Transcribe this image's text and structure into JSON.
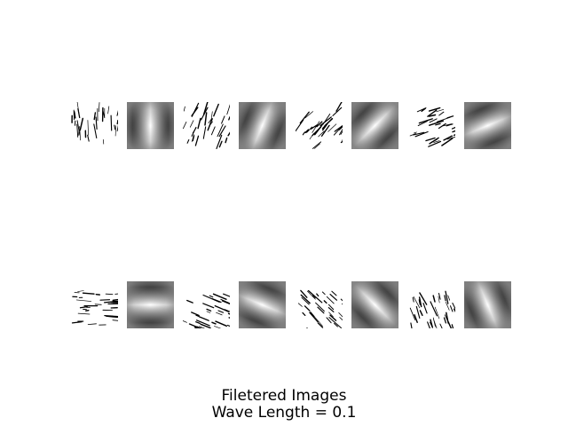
{
  "figure": {
    "caption_line1": "Filetered Images",
    "caption_line2": "Wave Length = 0.1"
  },
  "rows": [
    {
      "pairs": [
        {
          "filter_orientation_deg": 0
        },
        {
          "filter_orientation_deg": 22.5
        },
        {
          "filter_orientation_deg": 45
        },
        {
          "filter_orientation_deg": 67.5
        }
      ]
    },
    {
      "pairs": [
        {
          "filter_orientation_deg": 90
        },
        {
          "filter_orientation_deg": 112.5
        },
        {
          "filter_orientation_deg": 135
        },
        {
          "filter_orientation_deg": 157.5
        }
      ]
    }
  ],
  "colors": {
    "background": "#ffffff",
    "ink": "#000000",
    "filter_mid_gray": "#808080"
  }
}
